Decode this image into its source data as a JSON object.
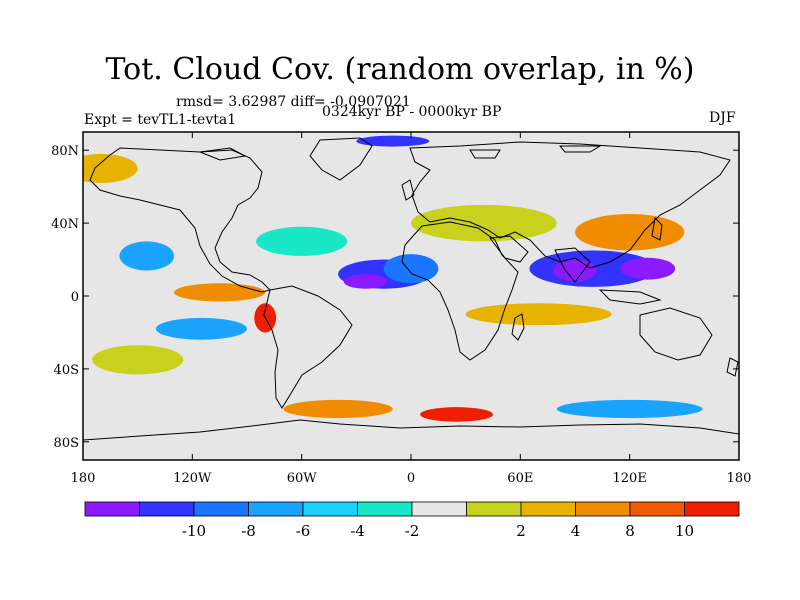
{
  "title": "Tot. Cloud Cov. (random overlap, in %)",
  "stats": "rmsd= 3.62987 diff= -0.0907021",
  "experiment": "Expt = tevTL1-tevta1",
  "period": "0324kyr BP - 0000kyr BP",
  "season": "DJF",
  "map": {
    "projection": "cylindrical-equidistant",
    "lon_range": [
      -180,
      180
    ],
    "lat_range": [
      -90,
      90
    ],
    "y_ticks": [
      {
        "label": "80N",
        "lat": 80
      },
      {
        "label": "40N",
        "lat": 40
      },
      {
        "label": "0",
        "lat": 0
      },
      {
        "label": "40S",
        "lat": -40
      },
      {
        "label": "80S",
        "lat": -80
      }
    ],
    "x_ticks": [
      {
        "label": "180",
        "lon": -180
      },
      {
        "label": "120W",
        "lon": -120
      },
      {
        "label": "60W",
        "lon": -60
      },
      {
        "label": "0",
        "lon": 0
      },
      {
        "label": "60E",
        "lon": 60
      },
      {
        "label": "120E",
        "lon": 120
      },
      {
        "label": "180",
        "lon": 180
      }
    ],
    "background_color": "#e6e6e6",
    "anomaly_regions": [
      {
        "lon": -15,
        "lat": 12,
        "rx": 25,
        "ry": 8,
        "level": -8
      },
      {
        "lon": -25,
        "lat": 8,
        "rx": 12,
        "ry": 4,
        "level": -10
      },
      {
        "lon": 0,
        "lat": 15,
        "rx": 15,
        "ry": 8,
        "level": -6
      },
      {
        "lon": 100,
        "lat": 15,
        "rx": 35,
        "ry": 10,
        "level": -8
      },
      {
        "lon": 90,
        "lat": 14,
        "rx": 12,
        "ry": 6,
        "level": -10
      },
      {
        "lon": 130,
        "lat": 15,
        "rx": 15,
        "ry": 6,
        "level": -10
      },
      {
        "lon": -105,
        "lat": 2,
        "rx": 25,
        "ry": 5,
        "level": 6
      },
      {
        "lon": -80,
        "lat": -12,
        "rx": 6,
        "ry": 8,
        "level": 10
      },
      {
        "lon": -115,
        "lat": -18,
        "rx": 25,
        "ry": 6,
        "level": -4
      },
      {
        "lon": -145,
        "lat": 22,
        "rx": 15,
        "ry": 8,
        "level": -4
      },
      {
        "lon": 25,
        "lat": -65,
        "rx": 20,
        "ry": 4,
        "level": 10
      },
      {
        "lon": -40,
        "lat": -62,
        "rx": 30,
        "ry": 5,
        "level": 6
      },
      {
        "lon": 120,
        "lat": -62,
        "rx": 40,
        "ry": 5,
        "level": -4
      },
      {
        "lon": -10,
        "lat": 85,
        "rx": 20,
        "ry": 3,
        "level": -8
      },
      {
        "lon": 40,
        "lat": 40,
        "rx": 40,
        "ry": 10,
        "level": 2
      },
      {
        "lon": 120,
        "lat": 35,
        "rx": 30,
        "ry": 10,
        "level": 6
      },
      {
        "lon": 70,
        "lat": -10,
        "rx": 40,
        "ry": 6,
        "level": 4
      },
      {
        "lon": -60,
        "lat": 30,
        "rx": 25,
        "ry": 8,
        "level": -2
      },
      {
        "lon": -150,
        "lat": -35,
        "rx": 25,
        "ry": 8,
        "level": 2
      },
      {
        "lon": -170,
        "lat": 70,
        "rx": 20,
        "ry": 8,
        "level": 4
      }
    ]
  },
  "colorbar": {
    "colors": [
      "#8c1aff",
      "#3333ff",
      "#1a75ff",
      "#1aa3ff",
      "#1ad1ff",
      "#1ae6c8",
      "#e6e6e6",
      "#c8d21e",
      "#e6b400",
      "#f08c00",
      "#f05a00",
      "#f01e00"
    ],
    "label_boundaries": [
      {
        "index": 1,
        "label": "-10"
      },
      {
        "index": 2,
        "label": "-8"
      },
      {
        "index": 3,
        "label": "-6"
      },
      {
        "index": 4,
        "label": "-4"
      },
      {
        "index": 5,
        "label": "-2"
      },
      {
        "index": 7,
        "label": "2"
      },
      {
        "index": 8,
        "label": "4"
      },
      {
        "index": 9,
        "label": "8"
      },
      {
        "index": 10,
        "label": "10"
      }
    ]
  }
}
